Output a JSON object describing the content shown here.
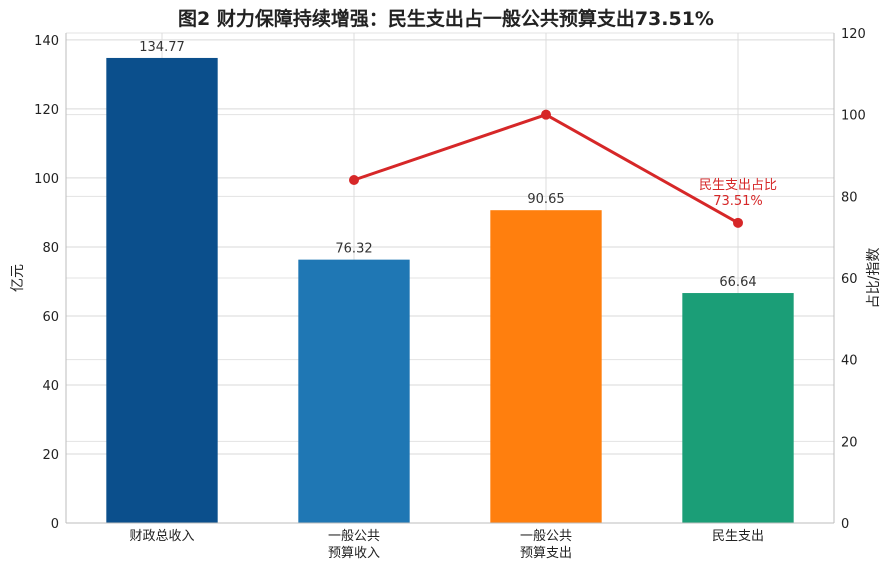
{
  "chart_data": {
    "type": "bar",
    "title": "图2 财力保障持续增强：民生支出占一般公共预算支出73.51%",
    "categories": [
      [
        "财政总收入"
      ],
      [
        "一般公共",
        "预算收入"
      ],
      [
        "一般公共",
        "预算支出"
      ],
      [
        "民生支出"
      ]
    ],
    "bar_values": [
      134.77,
      76.32,
      90.65,
      66.64
    ],
    "bar_labels": [
      "134.77",
      "76.32",
      "90.65",
      "66.64"
    ],
    "bar_colors": [
      "#0b4f8c",
      "#1f77b4",
      "#ff7f0e",
      "#1b9e77"
    ],
    "ylabel_left": "亿元",
    "ylabel_right": "占比/指数",
    "ylim_left": [
      0,
      142
    ],
    "ylim_right": [
      0,
      120
    ],
    "yticks_left": [
      0,
      20,
      40,
      60,
      80,
      100,
      120,
      140
    ],
    "yticks_right": [
      0,
      20,
      40,
      60,
      80,
      100,
      120
    ],
    "line": {
      "axis": "right",
      "color": "#d62728",
      "points": [
        {
          "category_index": 1,
          "value": 84
        },
        {
          "category_index": 2,
          "value": 100
        },
        {
          "category_index": 3,
          "value": 73.51
        }
      ]
    },
    "annotation": {
      "lines": [
        "民生支出占比",
        "73.51%"
      ],
      "category_index": 3
    },
    "grid": true
  }
}
